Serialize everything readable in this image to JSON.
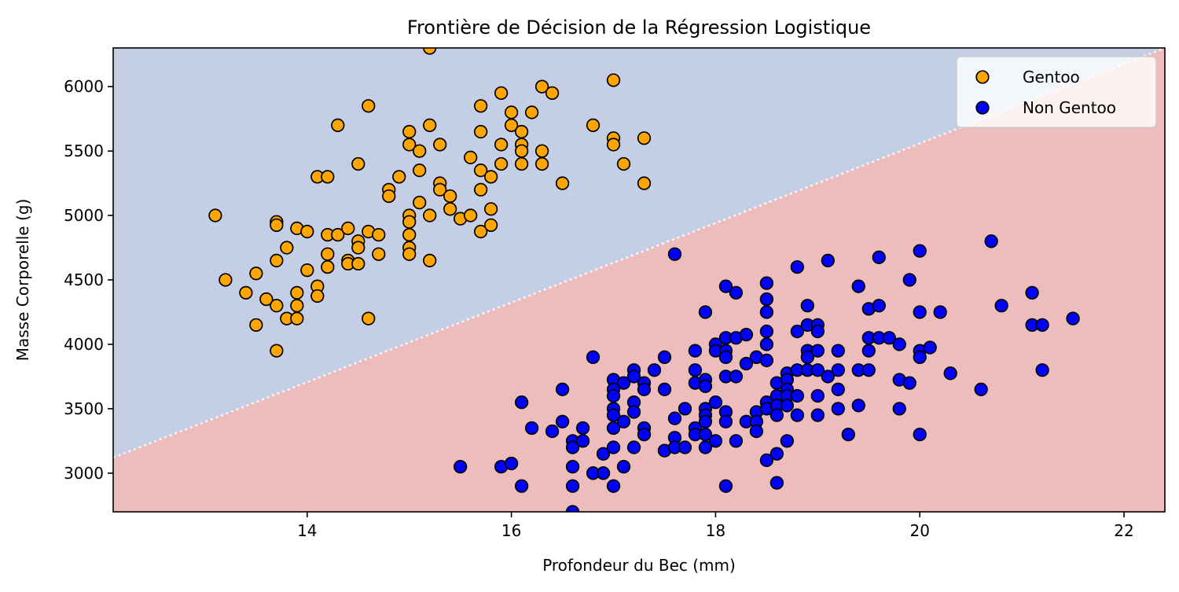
{
  "chart_data": {
    "type": "scatter",
    "title": "Frontière de Décision de la Régression Logistique",
    "xlabel": "Profondeur du Bec (mm)",
    "ylabel": "Masse Corporelle (g)",
    "xlim": [
      12.1,
      22.4
    ],
    "ylim": [
      2700,
      6300
    ],
    "xticks": [
      14,
      16,
      18,
      20,
      22
    ],
    "yticks": [
      3000,
      3500,
      4000,
      4500,
      5000,
      5500,
      6000
    ],
    "grid": false,
    "legend_position": "top-right",
    "decision_boundary": {
      "points": [
        [
          12.1,
          3120
        ],
        [
          22.4,
          6300
        ]
      ],
      "upper_region": {
        "label": "Gentoo",
        "color": "#c4cfe5"
      },
      "lower_region": {
        "label": "Non Gentoo",
        "color": "#edbcbc"
      }
    },
    "series": [
      {
        "name": "Gentoo",
        "color": "#ffa500",
        "edge_color": "#000000",
        "points": [
          [
            13.1,
            5000
          ],
          [
            13.2,
            4500
          ],
          [
            13.4,
            4400
          ],
          [
            13.5,
            4550
          ],
          [
            13.5,
            4150
          ],
          [
            13.6,
            4350
          ],
          [
            13.7,
            4950
          ],
          [
            13.7,
            4925
          ],
          [
            13.7,
            4650
          ],
          [
            13.7,
            4300
          ],
          [
            13.7,
            3950
          ],
          [
            13.8,
            4750
          ],
          [
            13.8,
            4200
          ],
          [
            13.9,
            4900
          ],
          [
            13.9,
            4400
          ],
          [
            13.9,
            4300
          ],
          [
            13.9,
            4200
          ],
          [
            14.0,
            4875
          ],
          [
            14.0,
            4575
          ],
          [
            14.1,
            5300
          ],
          [
            14.1,
            4450
          ],
          [
            14.1,
            4375
          ],
          [
            14.2,
            5300
          ],
          [
            14.2,
            4850
          ],
          [
            14.2,
            4700
          ],
          [
            14.2,
            4600
          ],
          [
            14.3,
            5700
          ],
          [
            14.3,
            4850
          ],
          [
            14.4,
            4900
          ],
          [
            14.4,
            4650
          ],
          [
            14.4,
            4625
          ],
          [
            14.5,
            5400
          ],
          [
            14.5,
            4800
          ],
          [
            14.5,
            4750
          ],
          [
            14.5,
            4625
          ],
          [
            14.6,
            5850
          ],
          [
            14.6,
            4875
          ],
          [
            14.6,
            4200
          ],
          [
            14.7,
            4850
          ],
          [
            14.7,
            4700
          ],
          [
            14.8,
            5200
          ],
          [
            14.8,
            5150
          ],
          [
            14.9,
            5300
          ],
          [
            15.0,
            5650
          ],
          [
            15.0,
            5550
          ],
          [
            15.0,
            5000
          ],
          [
            15.0,
            4950
          ],
          [
            15.0,
            4850
          ],
          [
            15.0,
            4750
          ],
          [
            15.0,
            4700
          ],
          [
            15.1,
            5500
          ],
          [
            15.1,
            5350
          ],
          [
            15.1,
            5100
          ],
          [
            15.2,
            6300
          ],
          [
            15.2,
            5700
          ],
          [
            15.2,
            5000
          ],
          [
            15.2,
            4650
          ],
          [
            15.3,
            5550
          ],
          [
            15.3,
            5250
          ],
          [
            15.3,
            5200
          ],
          [
            15.4,
            5150
          ],
          [
            15.4,
            5050
          ],
          [
            15.5,
            4975
          ],
          [
            15.6,
            5450
          ],
          [
            15.6,
            5000
          ],
          [
            15.7,
            5850
          ],
          [
            15.7,
            5650
          ],
          [
            15.7,
            5350
          ],
          [
            15.7,
            5200
          ],
          [
            15.7,
            4875
          ],
          [
            15.8,
            5300
          ],
          [
            15.8,
            5050
          ],
          [
            15.8,
            4925
          ],
          [
            15.9,
            5950
          ],
          [
            15.9,
            5550
          ],
          [
            15.9,
            5400
          ],
          [
            16.0,
            5800
          ],
          [
            16.0,
            5700
          ],
          [
            16.1,
            5650
          ],
          [
            16.1,
            5550
          ],
          [
            16.1,
            5500
          ],
          [
            16.1,
            5400
          ],
          [
            16.2,
            5800
          ],
          [
            16.3,
            6000
          ],
          [
            16.3,
            5500
          ],
          [
            16.3,
            5400
          ],
          [
            16.4,
            5950
          ],
          [
            16.5,
            5250
          ],
          [
            16.8,
            5700
          ],
          [
            17.0,
            6050
          ],
          [
            17.0,
            5600
          ],
          [
            17.0,
            5550
          ],
          [
            17.1,
            5400
          ],
          [
            17.3,
            5600
          ],
          [
            17.3,
            5250
          ]
        ]
      },
      {
        "name": "Non Gentoo",
        "color": "#0000ff",
        "edge_color": "#000000",
        "points": [
          [
            15.5,
            3050
          ],
          [
            15.9,
            3050
          ],
          [
            16.0,
            3075
          ],
          [
            16.1,
            3550
          ],
          [
            16.1,
            2900
          ],
          [
            16.2,
            3350
          ],
          [
            16.4,
            3325
          ],
          [
            16.5,
            3650
          ],
          [
            16.5,
            3400
          ],
          [
            16.6,
            3250
          ],
          [
            16.6,
            3200
          ],
          [
            16.6,
            3050
          ],
          [
            16.6,
            2900
          ],
          [
            16.6,
            2700
          ],
          [
            16.7,
            3350
          ],
          [
            16.7,
            3250
          ],
          [
            16.8,
            3900
          ],
          [
            16.8,
            3000
          ],
          [
            16.9,
            3150
          ],
          [
            16.9,
            3000
          ],
          [
            17.0,
            3725
          ],
          [
            17.0,
            3650
          ],
          [
            17.0,
            3600
          ],
          [
            17.0,
            3500
          ],
          [
            17.0,
            3450
          ],
          [
            17.0,
            3350
          ],
          [
            17.0,
            3200
          ],
          [
            17.0,
            2900
          ],
          [
            17.1,
            3700
          ],
          [
            17.1,
            3400
          ],
          [
            17.1,
            3050
          ],
          [
            17.2,
            3800
          ],
          [
            17.2,
            3750
          ],
          [
            17.2,
            3550
          ],
          [
            17.2,
            3475
          ],
          [
            17.2,
            3200
          ],
          [
            17.3,
            3700
          ],
          [
            17.3,
            3650
          ],
          [
            17.3,
            3350
          ],
          [
            17.3,
            3300
          ],
          [
            17.4,
            3800
          ],
          [
            17.5,
            3900
          ],
          [
            17.5,
            3650
          ],
          [
            17.5,
            3175
          ],
          [
            17.6,
            4700
          ],
          [
            17.6,
            3425
          ],
          [
            17.6,
            3275
          ],
          [
            17.6,
            3200
          ],
          [
            17.7,
            3500
          ],
          [
            17.7,
            3200
          ],
          [
            17.8,
            3950
          ],
          [
            17.8,
            3800
          ],
          [
            17.8,
            3700
          ],
          [
            17.8,
            3350
          ],
          [
            17.8,
            3300
          ],
          [
            17.9,
            4250
          ],
          [
            17.9,
            3725
          ],
          [
            17.9,
            3675
          ],
          [
            17.9,
            3500
          ],
          [
            17.9,
            3450
          ],
          [
            17.9,
            3400
          ],
          [
            17.9,
            3300
          ],
          [
            17.9,
            3200
          ],
          [
            18.0,
            4000
          ],
          [
            18.0,
            3950
          ],
          [
            18.0,
            3550
          ],
          [
            18.0,
            3250
          ],
          [
            18.1,
            4450
          ],
          [
            18.1,
            4050
          ],
          [
            18.1,
            3950
          ],
          [
            18.1,
            3900
          ],
          [
            18.1,
            3750
          ],
          [
            18.1,
            3475
          ],
          [
            18.1,
            3400
          ],
          [
            18.1,
            2900
          ],
          [
            18.2,
            4400
          ],
          [
            18.2,
            4050
          ],
          [
            18.2,
            3750
          ],
          [
            18.2,
            3250
          ],
          [
            18.3,
            4075
          ],
          [
            18.3,
            3850
          ],
          [
            18.3,
            3400
          ],
          [
            18.4,
            3900
          ],
          [
            18.4,
            3475
          ],
          [
            18.4,
            3400
          ],
          [
            18.4,
            3325
          ],
          [
            18.5,
            4475
          ],
          [
            18.5,
            4350
          ],
          [
            18.5,
            4250
          ],
          [
            18.5,
            4100
          ],
          [
            18.5,
            4000
          ],
          [
            18.5,
            3875
          ],
          [
            18.5,
            3550
          ],
          [
            18.5,
            3500
          ],
          [
            18.5,
            3100
          ],
          [
            18.6,
            3700
          ],
          [
            18.6,
            3600
          ],
          [
            18.6,
            3525
          ],
          [
            18.6,
            3450
          ],
          [
            18.6,
            3150
          ],
          [
            18.6,
            2925
          ],
          [
            18.7,
            3775
          ],
          [
            18.7,
            3725
          ],
          [
            18.7,
            3650
          ],
          [
            18.7,
            3600
          ],
          [
            18.7,
            3525
          ],
          [
            18.7,
            3250
          ],
          [
            18.8,
            4600
          ],
          [
            18.8,
            4100
          ],
          [
            18.8,
            3800
          ],
          [
            18.8,
            3600
          ],
          [
            18.8,
            3450
          ],
          [
            18.9,
            4300
          ],
          [
            18.9,
            4150
          ],
          [
            18.9,
            3950
          ],
          [
            18.9,
            3900
          ],
          [
            18.9,
            3800
          ],
          [
            19.0,
            4150
          ],
          [
            19.0,
            4100
          ],
          [
            19.0,
            3950
          ],
          [
            19.0,
            3800
          ],
          [
            19.0,
            3600
          ],
          [
            19.0,
            3450
          ],
          [
            19.1,
            4650
          ],
          [
            19.1,
            3750
          ],
          [
            19.2,
            3950
          ],
          [
            19.2,
            3800
          ],
          [
            19.2,
            3650
          ],
          [
            19.2,
            3500
          ],
          [
            19.3,
            3300
          ],
          [
            19.4,
            4450
          ],
          [
            19.4,
            3800
          ],
          [
            19.4,
            3525
          ],
          [
            19.5,
            4275
          ],
          [
            19.5,
            4050
          ],
          [
            19.5,
            3950
          ],
          [
            19.5,
            3800
          ],
          [
            19.6,
            4675
          ],
          [
            19.6,
            4300
          ],
          [
            19.6,
            4050
          ],
          [
            19.7,
            4050
          ],
          [
            19.8,
            4000
          ],
          [
            19.8,
            3725
          ],
          [
            19.8,
            3500
          ],
          [
            19.9,
            4500
          ],
          [
            19.9,
            3700
          ],
          [
            20.0,
            4725
          ],
          [
            20.0,
            4250
          ],
          [
            20.0,
            3950
          ],
          [
            20.0,
            3900
          ],
          [
            20.0,
            3300
          ],
          [
            20.1,
            3975
          ],
          [
            20.2,
            4250
          ],
          [
            20.3,
            3775
          ],
          [
            20.6,
            3650
          ],
          [
            20.7,
            4800
          ],
          [
            20.8,
            4300
          ],
          [
            21.1,
            4400
          ],
          [
            21.1,
            4150
          ],
          [
            21.2,
            4150
          ],
          [
            21.2,
            3800
          ],
          [
            21.5,
            4200
          ]
        ]
      }
    ]
  }
}
